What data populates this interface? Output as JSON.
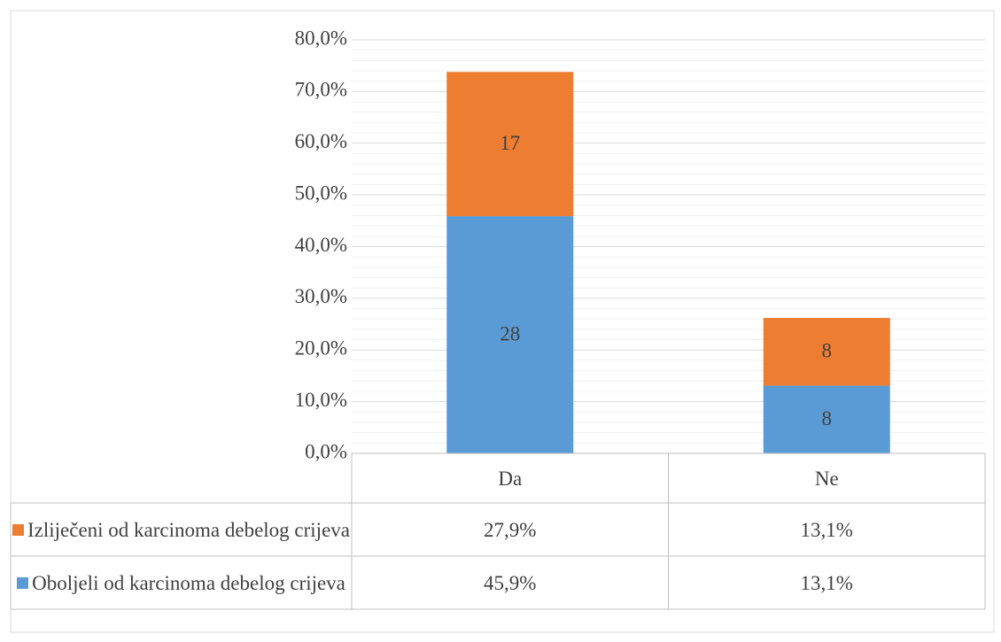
{
  "chart_data": {
    "type": "stacked_bar",
    "categories": [
      "Da",
      "Ne"
    ],
    "series": [
      {
        "name": "Oboljeli od karcinoma debelog crijeva",
        "color": "#5b9bd5",
        "values": [
          45.9,
          13.1
        ],
        "value_labels": [
          "45,9%",
          "13,1%"
        ],
        "counts": [
          28,
          8
        ]
      },
      {
        "name": "Izliječeni od karcinoma debelog crijeva",
        "color": "#ed7d31",
        "values": [
          27.9,
          13.1
        ],
        "value_labels": [
          "27,9%",
          "13,1%"
        ],
        "counts": [
          17,
          8
        ]
      }
    ],
    "ylim": [
      0,
      80
    ],
    "yticks": [
      {
        "value": 0,
        "label": "0,0%"
      },
      {
        "value": 10,
        "label": "10,0%"
      },
      {
        "value": 20,
        "label": "20,0%"
      },
      {
        "value": 30,
        "label": "30,0%"
      },
      {
        "value": 40,
        "label": "40,0%"
      },
      {
        "value": 50,
        "label": "50,0%"
      },
      {
        "value": 60,
        "label": "60,0%"
      },
      {
        "value": 70,
        "label": "70,0%"
      },
      {
        "value": 80,
        "label": "80,0%"
      }
    ],
    "grid": true,
    "minor_grid": true,
    "data_table": true
  }
}
